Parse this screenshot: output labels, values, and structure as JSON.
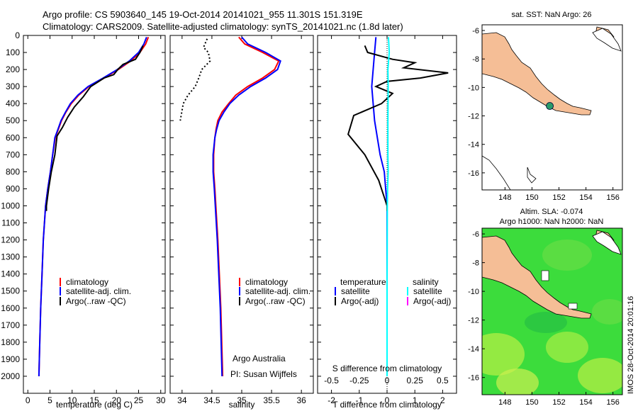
{
  "header": {
    "line1": "Argo profile: CS 5903640_145 19-Oct-2014 20141021_955 11.301S 151.319E",
    "line2": "Climatology: CARS2009. Satellite-adjusted climatology: synTS_20141021.nc (1.8d later)"
  },
  "footer": {
    "stamp": "IMOS 28-Oct-2014 20:01:16",
    "argo_org": "Argo Australia",
    "pi": "PI: Susan Wijffels"
  },
  "colors": {
    "climatology": "#ff0000",
    "satellite": "#0000ff",
    "argo": "#000000",
    "sat_salinity": "#00ffff",
    "argo_salinity": "#ff00ff",
    "land": "#f5be96",
    "ocean": "#3cdc3c"
  },
  "chart_data": [
    {
      "id": "temperature",
      "type": "line",
      "xlabel": "temperature (deg C)",
      "ylabel": "",
      "xlim": [
        -1,
        31
      ],
      "ylim": [
        2100,
        0
      ],
      "xticks": [
        0,
        5,
        10,
        15,
        20,
        25,
        30
      ],
      "xticklabels": [
        "0",
        "5",
        "10",
        "15",
        "20",
        "25",
        "30"
      ],
      "yticks": [
        0,
        100,
        200,
        300,
        400,
        500,
        600,
        700,
        800,
        900,
        1000,
        1100,
        1200,
        1300,
        1400,
        1500,
        1600,
        1700,
        1800,
        1900,
        2000
      ],
      "yticklabels": [
        "0",
        "100",
        "200",
        "300",
        "400",
        "500",
        "600",
        "700",
        "800",
        "900",
        "1000",
        "1100",
        "1200",
        "1300",
        "1400",
        "1500",
        "1600",
        "1700",
        "1800",
        "1900",
        "2000"
      ],
      "legend": [
        "climatology",
        "satellite-adj. clim.",
        "Argo(..raw -QC)"
      ],
      "series": [
        {
          "name": "climatology",
          "color": "#ff0000",
          "x": [
            27.2,
            26.6,
            25.3,
            23.2,
            20.4,
            17.2,
            13.8,
            11.5,
            9.8,
            8.6,
            7.6,
            6.9,
            6.2,
            5.6,
            5.1,
            4.5,
            4.0,
            3.5,
            3.2,
            2.9,
            2.7,
            2.5
          ],
          "y": [
            10,
            50,
            100,
            150,
            200,
            250,
            300,
            350,
            400,
            450,
            500,
            550,
            600,
            700,
            800,
            900,
            1000,
            1200,
            1400,
            1600,
            1800,
            2000
          ]
        },
        {
          "name": "satellite-adj. clim.",
          "color": "#0000ff",
          "x": [
            26.8,
            26.2,
            25.0,
            22.9,
            20.2,
            17.0,
            13.6,
            11.3,
            9.6,
            8.5,
            7.5,
            6.8,
            6.1,
            5.6,
            5.1,
            4.5,
            4.0,
            3.5,
            3.2,
            2.9,
            2.7,
            2.5
          ],
          "y": [
            10,
            50,
            100,
            150,
            200,
            250,
            300,
            350,
            400,
            450,
            500,
            550,
            600,
            700,
            800,
            900,
            1000,
            1200,
            1400,
            1600,
            1800,
            2000
          ]
        },
        {
          "name": "Argo(..raw -QC)",
          "color": "#000000",
          "x": [
            26.0,
            25.3,
            24.3,
            21.5,
            20.3,
            19.4,
            17.2,
            14.2,
            12.5,
            10.5,
            9.0,
            7.8,
            6.6,
            6.1,
            5.3,
            4.7,
            4.2,
            4.2
          ],
          "y": [
            60,
            100,
            140,
            170,
            200,
            230,
            250,
            300,
            360,
            420,
            480,
            540,
            590,
            700,
            800,
            900,
            1000,
            1030
          ]
        }
      ]
    },
    {
      "id": "salinity",
      "type": "line",
      "xlabel": "salinity",
      "xlim": [
        33.8,
        36.2
      ],
      "ylim": [
        2100,
        0
      ],
      "xticks": [
        34,
        34.5,
        35,
        35.5,
        36
      ],
      "xticklabels": [
        "34",
        "34.5",
        "35",
        "35.5",
        "36"
      ],
      "legend": [
        "climatology",
        "satellite-adj. clim.",
        "Argo(..raw -QC)"
      ],
      "series": [
        {
          "name": "climatology",
          "color": "#ff0000",
          "x": [
            34.95,
            35.05,
            35.35,
            35.62,
            35.55,
            35.35,
            35.1,
            34.9,
            34.78,
            34.67,
            34.6,
            34.57,
            34.55,
            34.53,
            34.53,
            34.55,
            34.6,
            34.65,
            34.68
          ],
          "y": [
            10,
            50,
            100,
            150,
            200,
            250,
            300,
            350,
            400,
            450,
            500,
            550,
            600,
            700,
            800,
            900,
            1200,
            1600,
            2000
          ]
        },
        {
          "name": "satellite-adj. clim.",
          "color": "#0000ff",
          "x": [
            35.0,
            35.1,
            35.4,
            35.65,
            35.6,
            35.4,
            35.15,
            34.95,
            34.8,
            34.7,
            34.62,
            34.58,
            34.55,
            34.52,
            34.52,
            34.54,
            34.59,
            34.64,
            34.67
          ],
          "y": [
            10,
            50,
            100,
            150,
            200,
            250,
            300,
            350,
            400,
            450,
            500,
            550,
            600,
            700,
            800,
            900,
            1200,
            1600,
            2000
          ]
        },
        {
          "name": "Argo(..raw -QC)",
          "color": "#000000",
          "x": [
            34.42,
            34.36,
            34.44,
            34.47,
            34.33,
            34.28,
            34.22,
            34.1,
            34.02,
            33.97
          ],
          "y": [
            20,
            70,
            100,
            150,
            200,
            250,
            300,
            350,
            400,
            500
          ]
        }
      ]
    },
    {
      "id": "difference",
      "type": "line",
      "xlabel": "T difference from climatology",
      "x2label": "S difference from climatology",
      "xlim": [
        -2.5,
        2.5
      ],
      "x2lim": [
        -0.625,
        0.625
      ],
      "ylim": [
        2100,
        0
      ],
      "xticks": [
        -2,
        -1,
        0,
        1,
        2
      ],
      "xticklabels": [
        "-2",
        "-1",
        "0",
        "1",
        "2"
      ],
      "x2ticks": [
        -0.5,
        -0.25,
        0,
        0.25,
        0.5
      ],
      "x2ticklabels": [
        "-0.5",
        "-0.25",
        "0",
        "0.25",
        "0.5"
      ],
      "legend_headers": [
        "temperature",
        "salinity"
      ],
      "legend": [
        "satellite",
        "Argo(-adj)",
        "satellite",
        "Argo(-adj)"
      ],
      "series": [
        {
          "name": "T satellite",
          "color": "#0000ff",
          "x": [
            -0.4,
            -0.45,
            -0.5,
            -0.55,
            -0.5,
            -0.45,
            -0.35,
            -0.25,
            -0.1,
            0.0,
            0.0,
            0.0
          ],
          "y": [
            10,
            100,
            200,
            300,
            400,
            500,
            600,
            700,
            800,
            1000,
            1500,
            2000
          ]
        },
        {
          "name": "T Argo(-adj)",
          "color": "#000000",
          "x": [
            -0.8,
            -0.7,
            0.2,
            1.0,
            0.6,
            2.2,
            1.2,
            0.0,
            -0.4,
            0.2,
            -0.2,
            -1.2,
            -1.4,
            -0.8,
            -0.3,
            -0.1,
            0.0,
            0.0
          ],
          "y": [
            60,
            100,
            140,
            160,
            190,
            220,
            250,
            270,
            300,
            340,
            400,
            470,
            580,
            700,
            850,
            950,
            1000,
            1030
          ]
        },
        {
          "name": "S satellite",
          "color": "#00ffff",
          "x": [
            0.05,
            0.08,
            0.03,
            0.04,
            0.03,
            0.03,
            0.04,
            0.02,
            0.01,
            0.0,
            0.0
          ],
          "y": [
            10,
            100,
            200,
            300,
            500,
            700,
            800,
            900,
            1000,
            1500,
            2000
          ]
        }
      ]
    },
    {
      "id": "map_sst",
      "type": "heatmap",
      "title": "sat. SST: NaN Argo: 26",
      "xlim": [
        146.3,
        156.7
      ],
      "ylim": [
        -17.2,
        -5.6
      ],
      "xticks": [
        148,
        150,
        152,
        154,
        156
      ],
      "xticklabels": [
        "148",
        "150",
        "152",
        "154",
        "156"
      ],
      "yticks": [
        -6,
        -8,
        -10,
        -12,
        -14,
        -16
      ],
      "yticklabels": [
        "-6",
        "-8",
        "-10",
        "-12",
        "-14",
        "-16"
      ],
      "marker": {
        "lon": 151.319,
        "lat": -11.301
      }
    },
    {
      "id": "map_sla",
      "type": "heatmap",
      "title": "Altim. SLA: -0.074",
      "subtitle": "Argo h1000: NaN h2000: NaN",
      "xlim": [
        146.3,
        156.7
      ],
      "ylim": [
        -17.2,
        -5.6
      ],
      "xticks": [
        148,
        150,
        152,
        154,
        156
      ],
      "xticklabels": [
        "148",
        "150",
        "152",
        "154",
        "156"
      ],
      "yticks": [
        -6,
        -8,
        -10,
        -12,
        -14,
        -16
      ],
      "yticklabels": [
        "-6",
        "-8",
        "-10",
        "-12",
        "-14",
        "-16"
      ]
    }
  ]
}
